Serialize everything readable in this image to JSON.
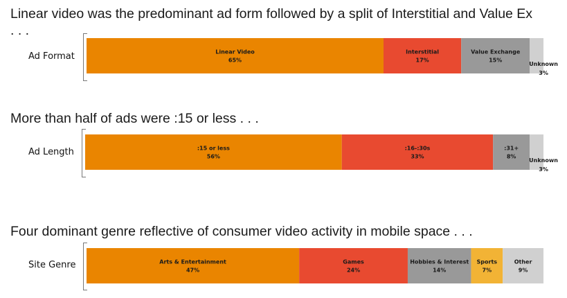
{
  "headlines": {
    "h1": "Linear video was the predominant ad form followed by a split of Interstitial and Value Ex . . .",
    "h2": "More than half of ads were :15 or less . . .",
    "h3": "Four dominant genre reflective of consumer video activity in mobile space . . ."
  },
  "colors": {
    "orange": "#EA8500",
    "red": "#E84A30",
    "gray": "#999999",
    "lightgray": "#D0D0D0",
    "yellow": "#F2B335"
  },
  "chart_data": [
    {
      "type": "bar",
      "stacked": true,
      "orientation": "horizontal",
      "category": "Ad Format",
      "segments": [
        {
          "name": "Linear Video",
          "value": 65,
          "label": "65%",
          "color": "#EA8500"
        },
        {
          "name": "Interstitial",
          "value": 17,
          "label": "17%",
          "color": "#E84A30"
        },
        {
          "name": "Value Exchange",
          "value": 15,
          "label": "15%",
          "color": "#999999"
        },
        {
          "name": "Unknown",
          "value": 3,
          "label": "3%",
          "color": "#D0D0D0"
        }
      ]
    },
    {
      "type": "bar",
      "stacked": true,
      "orientation": "horizontal",
      "category": "Ad Length",
      "segments": [
        {
          "name": ":15 or less",
          "value": 56,
          "label": "56%",
          "color": "#EA8500"
        },
        {
          "name": ":16-:30s",
          "value": 33,
          "label": "33%",
          "color": "#E84A30"
        },
        {
          "name": ":31+",
          "value": 8,
          "label": "8%",
          "color": "#999999"
        },
        {
          "name": "Unknown",
          "value": 3,
          "label": "3%",
          "color": "#D0D0D0"
        }
      ]
    },
    {
      "type": "bar",
      "stacked": true,
      "orientation": "horizontal",
      "category": "Site Genre",
      "segments": [
        {
          "name": "Arts & Entertainment",
          "value": 47,
          "label": "47%",
          "color": "#EA8500"
        },
        {
          "name": "Games",
          "value": 24,
          "label": "24%",
          "color": "#E84A30"
        },
        {
          "name": "Hobbies & Interest",
          "value": 14,
          "label": "14%",
          "color": "#999999"
        },
        {
          "name": "Sports",
          "value": 7,
          "label": "7%",
          "color": "#F2B335"
        },
        {
          "name": "Other",
          "value": 9,
          "label": "9%",
          "color": "#D0D0D0"
        }
      ]
    }
  ]
}
